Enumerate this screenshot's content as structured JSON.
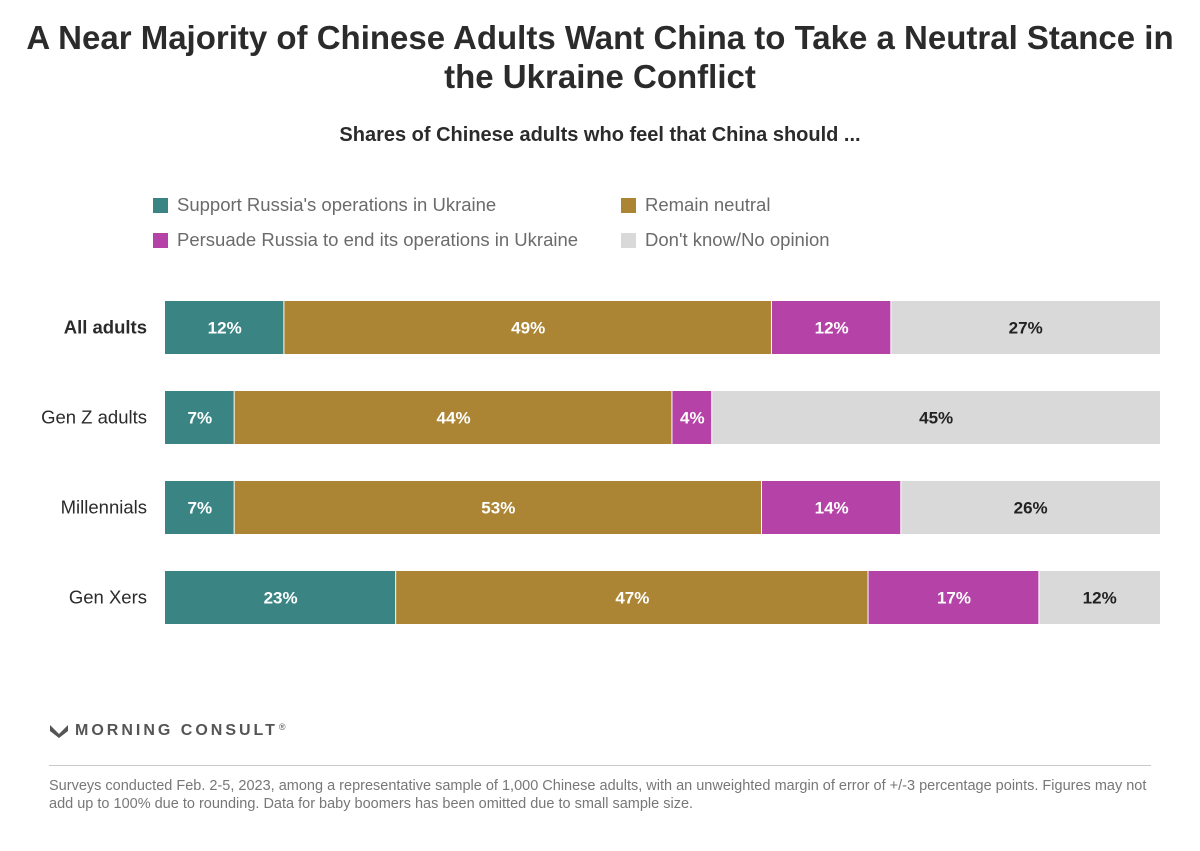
{
  "title": "A Near Majority of Chinese Adults Want China to Take a Neutral Stance in the Ukraine Conflict",
  "subtitle": "Shares of Chinese adults who feel that China should ...",
  "legend": [
    {
      "label": "Support Russia's operations in Ukraine",
      "color": "#3a8484"
    },
    {
      "label": "Remain neutral",
      "color": "#ab8434"
    },
    {
      "label": "Persuade Russia to end its operations in Ukraine",
      "color": "#b542a7"
    },
    {
      "label": "Don't know/No opinion",
      "color": "#d9d9d9"
    }
  ],
  "chart_data": {
    "type": "bar",
    "orientation": "horizontal",
    "stacked": true,
    "categories": [
      "All adults",
      "Gen Z adults",
      "Millennials",
      "Gen Xers"
    ],
    "series": [
      {
        "name": "Support Russia's operations in Ukraine",
        "color": "#3a8484",
        "values": [
          12,
          7,
          7,
          23
        ],
        "labels": [
          "12%",
          "7%",
          "7%",
          "23%"
        ]
      },
      {
        "name": "Remain neutral",
        "color": "#ab8434",
        "values": [
          49,
          44,
          53,
          47
        ],
        "labels": [
          "49%",
          "44%",
          "53%",
          "47%"
        ]
      },
      {
        "name": "Persuade Russia to end its operations in Ukraine",
        "color": "#b542a7",
        "values": [
          12,
          4,
          14,
          17
        ],
        "labels": [
          "12%",
          "4%",
          "14%",
          "17%"
        ]
      },
      {
        "name": "Don't know/No opinion",
        "color": "#d9d9d9",
        "values": [
          27,
          45,
          26,
          12
        ],
        "labels": [
          "27%",
          "45%",
          "26%",
          "12%"
        ]
      }
    ],
    "xlim": [
      0,
      100
    ],
    "legend_position": "top",
    "grid": false
  },
  "branding": {
    "logo_text": "MORNING CONSULT",
    "logo_mark": "®"
  },
  "footnote": "Surveys conducted Feb. 2-5, 2023, among a representative sample of 1,000 Chinese adults, with an unweighted margin of error of +/-3 percentage points. Figures may not add up to 100% due to rounding. Data for baby boomers has been omitted due to small sample size."
}
